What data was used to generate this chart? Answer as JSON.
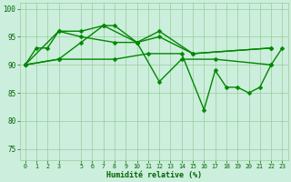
{
  "background_color": "#cceedd",
  "grid_color": "#99cc99",
  "line_color": "#008800",
  "marker_color": "#008800",
  "xlabel": "Humidité relative (%)",
  "xlabel_color": "#006600",
  "tick_color": "#006600",
  "ylim": [
    73,
    101
  ],
  "yticks": [
    75,
    80,
    85,
    90,
    95,
    100
  ],
  "xlim": [
    -0.5,
    23.5
  ],
  "xtick_labels": [
    "0",
    "1",
    "2",
    "3",
    "5",
    "6",
    "7",
    "8",
    "9",
    "10",
    "11",
    "12",
    "13",
    "14",
    "15",
    "16",
    "17",
    "18",
    "19",
    "20",
    "21",
    "22",
    "23"
  ],
  "xtick_positions": [
    0,
    1,
    2,
    3,
    5,
    6,
    7,
    8,
    9,
    10,
    11,
    12,
    13,
    14,
    15,
    16,
    17,
    18,
    19,
    20,
    21,
    22,
    23
  ],
  "series": [
    {
      "x": [
        0,
        1,
        2,
        3,
        5,
        7,
        8,
        10,
        12,
        15,
        22
      ],
      "y": [
        90,
        93,
        93,
        96,
        96,
        97,
        97,
        94,
        96,
        92,
        93
      ]
    },
    {
      "x": [
        0,
        3,
        5,
        8,
        10,
        12,
        15,
        22
      ],
      "y": [
        90,
        96,
        95,
        94,
        94,
        95,
        92,
        93
      ]
    },
    {
      "x": [
        0,
        3,
        5,
        7,
        10,
        12,
        14,
        17,
        22
      ],
      "y": [
        90,
        91,
        94,
        97,
        94,
        87,
        91,
        91,
        90
      ]
    },
    {
      "x": [
        0,
        3,
        8,
        11,
        14,
        16,
        17,
        18,
        19,
        20,
        21,
        22,
        23
      ],
      "y": [
        90,
        91,
        91,
        92,
        92,
        82,
        89,
        86,
        86,
        85,
        86,
        90,
        93
      ]
    }
  ],
  "linewidth": 1.0,
  "markersize": 2.5
}
